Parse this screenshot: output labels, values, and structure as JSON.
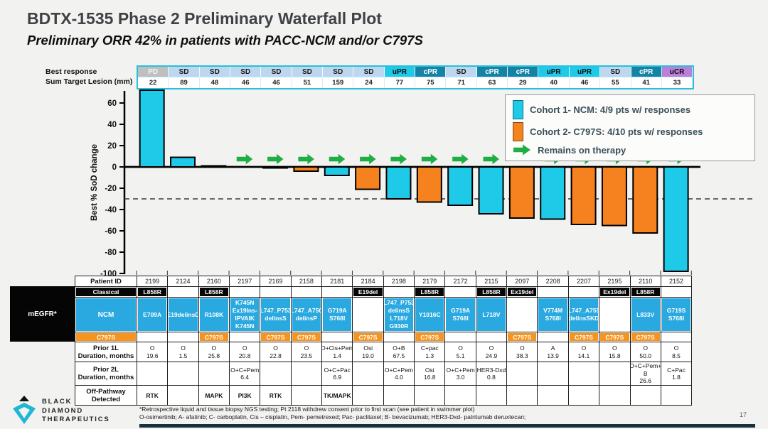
{
  "slide": {
    "title": "BDTX-1535 Phase 2 Preliminary Waterfall Plot",
    "subtitle": "Preliminary ORR 42% in patients with PACC-NCM and/or C797S",
    "page_number": "17",
    "footnote_line1": "*Retrospective liquid and tissue biopsy NGS testing; Pt 2118 withdrew consent prior to first scan (see patient in swimmer plot)",
    "footnote_line2": "O-osimertinib; A- afatinib; C- carboplatin, Cis – cisplatin, Pem- pemetrexed; Pac- paclitaxel; B- bevacizumab; HER3-Dxd- patritumab deruxtecan;",
    "logo_lines": [
      "BLACK",
      "DIAMOND",
      "THERAPEUTICS"
    ]
  },
  "response_strip": {
    "row1_label": "Best response",
    "row2_label": "Sum Target Lesion (mm)"
  },
  "response_styles": {
    "PD": {
      "bg": "#BFBFBF",
      "text": "#F5F5F5"
    },
    "SD": {
      "bg": "#BDD7EE",
      "text": "#1a1a1a"
    },
    "uPR": {
      "bg": "#1FC9E8",
      "text": "#0d0d0d"
    },
    "cPR": {
      "bg": "#1583A4",
      "text": "#ffffff"
    },
    "uCR": {
      "bg": "#BD7DDB",
      "text": "#0d0d0d"
    }
  },
  "legend": {
    "items": [
      {
        "type": "swatch",
        "color": "#1FC9E8",
        "label": "Cohort 1- NCM: 4/9 pts w/ responses"
      },
      {
        "type": "swatch",
        "color": "#F5821F",
        "label": "Cohort 2- C797S: 4/10 pts w/ responses"
      },
      {
        "type": "arrow",
        "color": "#1FAE43",
        "label": "Remains on therapy"
      }
    ]
  },
  "chart_data": {
    "type": "bar",
    "subtype": "waterfall",
    "title": "",
    "xlabel": "",
    "ylabel": "Best % SoD change",
    "ylim": [
      -100,
      75
    ],
    "yticks": [
      60,
      40,
      20,
      0,
      -20,
      -40,
      -60,
      -80,
      -100
    ],
    "dashed_reference_y": -30,
    "grid": false,
    "legend_position": "top-right",
    "categories": [
      "2199",
      "2124",
      "2160",
      "2197",
      "2169",
      "2158",
      "2181",
      "2184",
      "2198",
      "2179",
      "2172",
      "2115",
      "2097",
      "2208",
      "2207",
      "2195",
      "2110",
      "2152"
    ],
    "values": [
      72,
      9,
      1,
      0,
      -1,
      -4,
      -8,
      -21,
      -30,
      -33,
      -36,
      -44,
      -48,
      -49,
      -54,
      -55,
      -62,
      -98
    ],
    "bar_cohorts": [
      "NCM",
      "NCM",
      "C797S",
      "NCM",
      "C797S",
      "C797S",
      "NCM",
      "C797S",
      "NCM",
      "C797S",
      "NCM",
      "NCM",
      "C797S",
      "NCM",
      "C797S",
      "C797S",
      "C797S",
      "NCM"
    ],
    "remains_on_therapy": [
      false,
      false,
      false,
      true,
      true,
      true,
      true,
      true,
      true,
      true,
      true,
      true,
      false,
      true,
      true,
      true,
      true,
      true
    ],
    "cohort_colors": {
      "NCM": "#1FC9E8",
      "C797S": "#F5821F"
    },
    "arrow_color": "#1FAE43"
  },
  "table": {
    "megfr_label": "mEGFR*",
    "row_labels": {
      "patient_id": "Patient ID",
      "classical": "Classical",
      "ncm": "NCM",
      "c797s": "C797S",
      "prior_1l": [
        "Prior 1L",
        "Duration, months"
      ],
      "prior_2l": [
        "Prior 2L",
        "Duration, months"
      ],
      "off_pathway": [
        "Off-Pathway",
        "Detected"
      ]
    },
    "c797s_value": "C797S"
  },
  "patients": [
    {
      "id": "2199",
      "response": "PD",
      "lesion": "22",
      "sod": 72,
      "classical": "L858R",
      "ncm": [
        "E709A"
      ],
      "c797s": false,
      "p1l": "O",
      "p1l_m": "19.6",
      "p2l": [],
      "p2l_m": "",
      "offpath": "RTK"
    },
    {
      "id": "2124",
      "response": "SD",
      "lesion": "89",
      "sod": 9,
      "classical": "",
      "ncm": [
        "E19delinsD"
      ],
      "c797s": false,
      "p1l": "O",
      "p1l_m": "1.5",
      "p2l": [],
      "p2l_m": "",
      "offpath": ""
    },
    {
      "id": "2160",
      "response": "SD",
      "lesion": "48",
      "sod": 1,
      "classical": "L858R",
      "ncm": [
        "R108K"
      ],
      "c797s": true,
      "p1l": "O",
      "p1l_m": "25.8",
      "p2l": [],
      "p2l_m": "",
      "offpath": "MAPK"
    },
    {
      "id": "2197",
      "response": "SD",
      "lesion": "46",
      "sod": 0,
      "classical": "",
      "ncm": [
        "K745N",
        "Ex19Ins-",
        "IPVAIK",
        "K745N"
      ],
      "c797s": false,
      "p1l": "O",
      "p1l_m": "20.8",
      "p2l": [
        "O+C+Pem"
      ],
      "p2l_m": "6.4",
      "offpath": "PI3K"
    },
    {
      "id": "2169",
      "response": "SD",
      "lesion": "46",
      "sod": -1,
      "classical": "",
      "ncm": [
        "L747_P753",
        "delinsS"
      ],
      "c797s": true,
      "p1l": "O",
      "p1l_m": "22.8",
      "p2l": [],
      "p2l_m": "",
      "offpath": "RTK"
    },
    {
      "id": "2158",
      "response": "SD",
      "lesion": "51",
      "sod": -4,
      "classical": "",
      "ncm": [
        "L747_A750",
        "delinsP"
      ],
      "c797s": true,
      "p1l": "O",
      "p1l_m": "23.5",
      "p2l": [],
      "p2l_m": "",
      "offpath": ""
    },
    {
      "id": "2181",
      "response": "SD",
      "lesion": "159",
      "sod": -8,
      "classical": "",
      "ncm": [
        "G719A",
        "S768I"
      ],
      "c797s": false,
      "p1l": "O+Cis+Pem",
      "p1l_m": "1.4",
      "p2l": [
        "O+C+Pac"
      ],
      "p2l_m": "6.9",
      "offpath": "TK/MAPK"
    },
    {
      "id": "2184",
      "response": "SD",
      "lesion": "24",
      "sod": -21,
      "classical": "E19del",
      "ncm": [],
      "c797s": true,
      "p1l": "Osi",
      "p1l_m": "19.0",
      "p2l": [],
      "p2l_m": "",
      "offpath": ""
    },
    {
      "id": "2198",
      "response": "uPR",
      "lesion": "77",
      "sod": -30,
      "classical": "",
      "ncm": [
        "L747_P753",
        "delinsS",
        "L718V",
        "G930R"
      ],
      "c797s": false,
      "p1l": "O+B",
      "p1l_m": "67.5",
      "p2l": [
        "O+C+Pem"
      ],
      "p2l_m": "4.0",
      "offpath": ""
    },
    {
      "id": "2179",
      "response": "cPR",
      "lesion": "75",
      "sod": -33,
      "classical": "L858R",
      "ncm": [
        "Y1016C"
      ],
      "c797s": true,
      "p1l": "C+pac",
      "p1l_m": "1.3",
      "p2l": [
        "Osi"
      ],
      "p2l_m": "16.8",
      "offpath": ""
    },
    {
      "id": "2172",
      "response": "SD",
      "lesion": "71",
      "sod": -36,
      "classical": "",
      "ncm": [
        "G719A",
        "S768I"
      ],
      "c797s": false,
      "p1l": "O",
      "p1l_m": "5.1",
      "p2l": [
        "O+C+Pem"
      ],
      "p2l_m": "3.0",
      "offpath": ""
    },
    {
      "id": "2115",
      "response": "cPR",
      "lesion": "63",
      "sod": -44,
      "classical": "L858R",
      "ncm": [
        "L718V"
      ],
      "c797s": false,
      "p1l": "O",
      "p1l_m": "24.9",
      "p2l": [
        "HER3-Dxd"
      ],
      "p2l_m": "0.8",
      "offpath": ""
    },
    {
      "id": "2097",
      "response": "cPR",
      "lesion": "29",
      "sod": -48,
      "classical": "Ex19del",
      "ncm": [],
      "c797s": true,
      "p1l": "O",
      "p1l_m": "38.3",
      "p2l": [],
      "p2l_m": "",
      "offpath": ""
    },
    {
      "id": "2208",
      "response": "uPR",
      "lesion": "40",
      "sod": -49,
      "classical": "",
      "ncm": [
        "V774M",
        "S768I"
      ],
      "c797s": false,
      "p1l": "A",
      "p1l_m": "13.9",
      "p2l": [],
      "p2l_m": "",
      "offpath": ""
    },
    {
      "id": "2207",
      "response": "uPR",
      "lesion": "46",
      "sod": -54,
      "classical": "",
      "ncm": [
        "L747_A755",
        "delinsSKD"
      ],
      "c797s": true,
      "p1l": "O",
      "p1l_m": "14.1",
      "p2l": [],
      "p2l_m": "",
      "offpath": ""
    },
    {
      "id": "2195",
      "response": "SD",
      "lesion": "55",
      "sod": -55,
      "classical": "Ex19del",
      "ncm": [],
      "c797s": true,
      "p1l": "O",
      "p1l_m": "15.8",
      "p2l": [],
      "p2l_m": "",
      "offpath": ""
    },
    {
      "id": "2110",
      "response": "cPR",
      "lesion": "41",
      "sod": -62,
      "classical": "L858R",
      "ncm": [
        "L833V"
      ],
      "c797s": true,
      "p1l": "O",
      "p1l_m": "50.0",
      "p2l": [
        "O+C+Pem+",
        "B"
      ],
      "p2l_m": "26.6",
      "offpath": ""
    },
    {
      "id": "2152",
      "response": "uCR",
      "lesion": "33",
      "sod": -98,
      "classical": "",
      "ncm": [
        "G719S",
        "S768I"
      ],
      "c797s": false,
      "p1l": "O",
      "p1l_m": "8.5",
      "p2l": [
        "C+Pac"
      ],
      "p2l_m": "1.8",
      "offpath": ""
    }
  ]
}
